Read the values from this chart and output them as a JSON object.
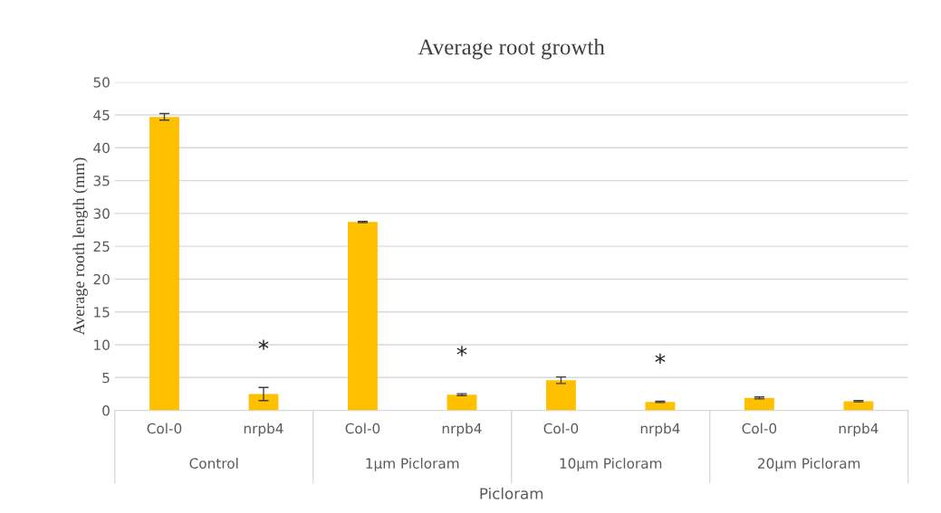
{
  "chart_data": {
    "type": "bar",
    "title": "Average root growth",
    "xlabel": "Picloram",
    "ylabel": "Average rooth length (mm)",
    "categories": [
      "Col-0",
      "nrpb4",
      "Col-0",
      "nrpb4",
      "Col-0",
      "nrpb4",
      "Col-0",
      "nrpb4"
    ],
    "values": [
      44.7,
      2.5,
      28.7,
      2.4,
      4.6,
      1.3,
      1.9,
      1.4
    ],
    "errors": [
      0.5,
      1.0,
      0.1,
      0.15,
      0.5,
      0.1,
      0.15,
      0.1
    ],
    "value_labels": [
      null,
      "*",
      null,
      "*",
      null,
      "*",
      null,
      null
    ],
    "color": "#ffc000",
    "annotations": [
      "Control",
      "1µm Picloram",
      "10µm Picloram",
      "20µm Picloram"
    ],
    "ylim": [
      0,
      50
    ],
    "yticks": [
      0,
      5,
      10,
      15,
      20,
      25,
      30,
      35,
      40,
      45,
      50
    ],
    "grid": "y"
  }
}
